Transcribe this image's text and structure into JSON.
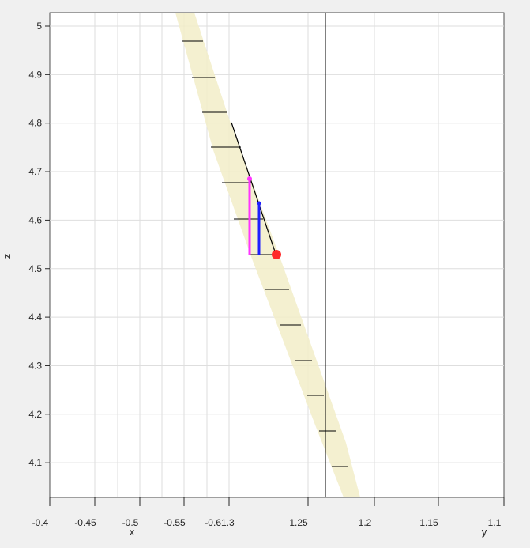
{
  "chart_data": {
    "type": "3d-line",
    "title": "",
    "zlabel": "z",
    "xlabel": "x",
    "ylabel": "y",
    "zlim": [
      4.02,
      5.02
    ],
    "z_ticks": [
      {
        "value": 5.0,
        "label": "5"
      },
      {
        "value": 4.9,
        "label": "4.9"
      },
      {
        "value": 4.8,
        "label": "4.8"
      },
      {
        "value": 4.7,
        "label": "4.7"
      },
      {
        "value": 4.6,
        "label": "4.6"
      },
      {
        "value": 4.5,
        "label": "4.5"
      },
      {
        "value": 4.4,
        "label": "4.4"
      },
      {
        "value": 4.3,
        "label": "4.3"
      },
      {
        "value": 4.2,
        "label": "4.2"
      },
      {
        "value": 4.1,
        "label": "4.1"
      }
    ],
    "bottom_ticks": [
      "-0.4",
      "-0.45",
      "-0.5",
      "-0.55",
      "-0.61.3",
      "1.25",
      "1.2",
      "1.15",
      "1.1"
    ],
    "grid": true,
    "colors": {
      "background": "#ffffff",
      "grid": "#dedede",
      "axis": "#262626",
      "band": "#f2edc8",
      "line": "#000000",
      "magenta": "#ff33ff",
      "blue": "#1e1eff",
      "marker": "#ff2a2a"
    }
  }
}
